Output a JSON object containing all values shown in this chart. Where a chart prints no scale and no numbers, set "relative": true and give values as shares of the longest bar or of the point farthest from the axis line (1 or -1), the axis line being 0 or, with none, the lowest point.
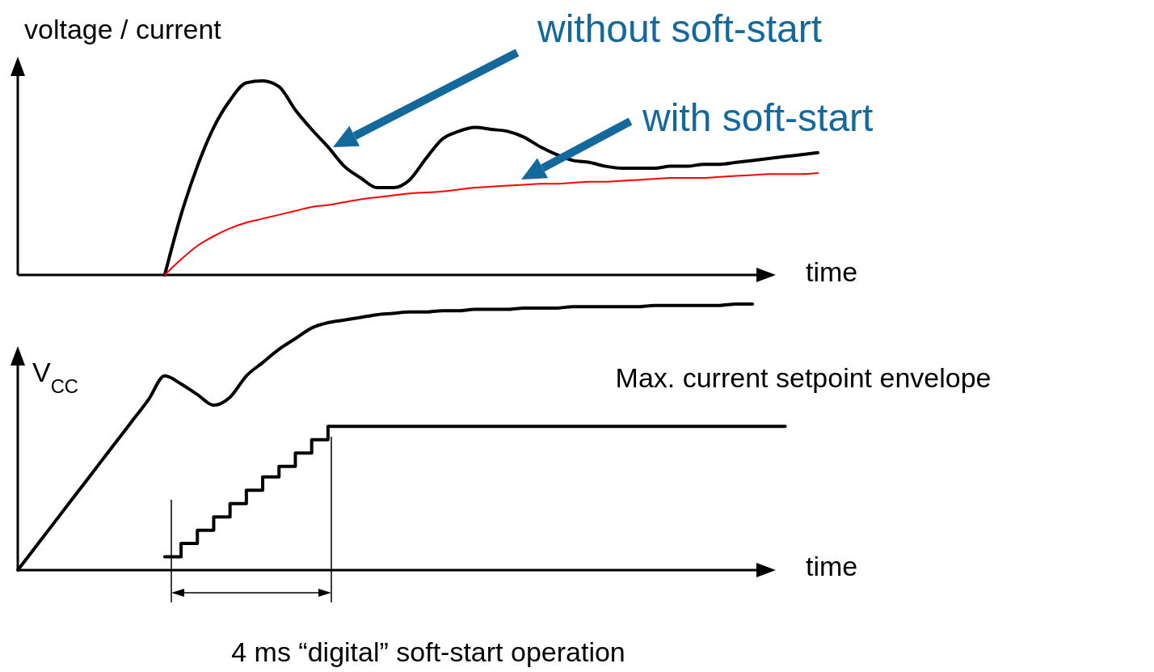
{
  "chart_data": [
    {
      "type": "line",
      "relative": true,
      "ylabel": "voltage / current",
      "xlabel": "time",
      "legend": false,
      "categories": [
        null,
        null,
        null,
        null,
        null,
        null,
        null,
        null,
        null,
        null,
        null,
        null,
        null,
        null,
        null,
        null,
        null,
        null,
        null,
        null,
        null,
        null,
        null,
        null,
        null,
        null,
        null,
        null,
        null,
        null,
        null,
        null,
        null,
        null,
        null,
        null,
        null,
        null,
        null,
        null,
        null,
        null,
        null,
        null,
        null,
        null,
        null,
        null,
        null,
        null
      ],
      "annotations": [
        "without soft-start",
        "with soft-start"
      ],
      "series": [
        {
          "color": "#000000",
          "values": [
            null,
            null,
            null,
            null,
            null,
            null,
            null,
            null,
            null,
            0,
            0.31,
            0.56,
            0.76,
            0.9,
            0.99,
            1,
            0.97,
            0.85,
            0.75,
            0.66,
            0.56,
            0.5,
            0.45,
            0.45,
            0.49,
            0.6,
            0.7,
            0.74,
            0.76,
            0.75,
            0.74,
            0.71,
            0.66,
            0.62,
            0.59,
            0.58,
            0.56,
            0.55,
            0.55,
            0.55,
            0.56,
            0.56,
            0.57,
            0.57,
            0.58,
            0.59,
            0.6,
            0.61,
            0.62,
            0.63
          ]
        },
        {
          "color": "#ff0000",
          "values": [
            null,
            null,
            null,
            null,
            null,
            null,
            null,
            null,
            null,
            0,
            0.08,
            0.15,
            0.2,
            0.24,
            0.27,
            0.29,
            0.31,
            0.33,
            0.35,
            0.36,
            0.375,
            0.39,
            0.4,
            0.41,
            0.42,
            0.425,
            0.43,
            0.44,
            0.45,
            0.455,
            0.46,
            0.465,
            0.47,
            0.47,
            0.475,
            0.48,
            0.48,
            0.485,
            0.49,
            0.495,
            0.5,
            0.5,
            0.5,
            0.505,
            0.51,
            0.515,
            0.52,
            0.52,
            0.52,
            0.525
          ]
        }
      ]
    },
    {
      "type": "line",
      "relative": true,
      "ylabel": "V$_{CC}$",
      "xlabel": "time",
      "legend": false,
      "categories": [
        null,
        null,
        null,
        null,
        null,
        null,
        null,
        null,
        null,
        null,
        null,
        null,
        null,
        null,
        null,
        null,
        null,
        null,
        null,
        null,
        null,
        null,
        null,
        null,
        null,
        null,
        null,
        null,
        null,
        null,
        null,
        null,
        null,
        null,
        null,
        null,
        null,
        null,
        null,
        null,
        null,
        null,
        null,
        null,
        null,
        null,
        null,
        null,
        null,
        null
      ],
      "annotations": [
        "4 ms “digital” soft-start operation"
      ],
      "series": [
        {
          "color": "#000000",
          "values": [
            0,
            0.08,
            0.16,
            0.24,
            0.32,
            0.4,
            0.48,
            0.56,
            0.64,
            0.73,
            0.7,
            0.66,
            0.62,
            0.65,
            0.73,
            0.78,
            0.83,
            0.87,
            0.91,
            0.93,
            0.94,
            0.95,
            0.96,
            0.965,
            0.97,
            0.97,
            0.975,
            0.975,
            0.98,
            0.98,
            0.98,
            0.985,
            0.985,
            0.985,
            0.99,
            0.99,
            0.99,
            0.99,
            0.99,
            0.995,
            0.995,
            0.995,
            0.995,
            0.995,
            1,
            1,
            null,
            null,
            null,
            null
          ]
        },
        {
          "type": "step",
          "name": "Max. current setpoint envelope",
          "color": "#000000",
          "values": [
            null,
            null,
            null,
            null,
            null,
            null,
            null,
            null,
            null,
            0.05,
            0.1,
            0.15,
            0.2,
            0.25,
            0.3,
            0.35,
            0.39,
            0.44,
            0.49,
            0.54,
            0.54,
            0.54,
            0.54,
            0.54,
            0.54,
            0.54,
            0.54,
            0.54,
            0.54,
            0.54,
            0.54,
            0.54,
            0.54,
            0.54,
            0.54,
            0.54,
            0.54,
            0.54,
            0.54,
            0.54,
            0.54,
            0.54,
            0.54,
            0.54,
            0.54,
            0.54,
            0.54,
            0.54,
            null,
            null
          ]
        }
      ]
    }
  ]
}
